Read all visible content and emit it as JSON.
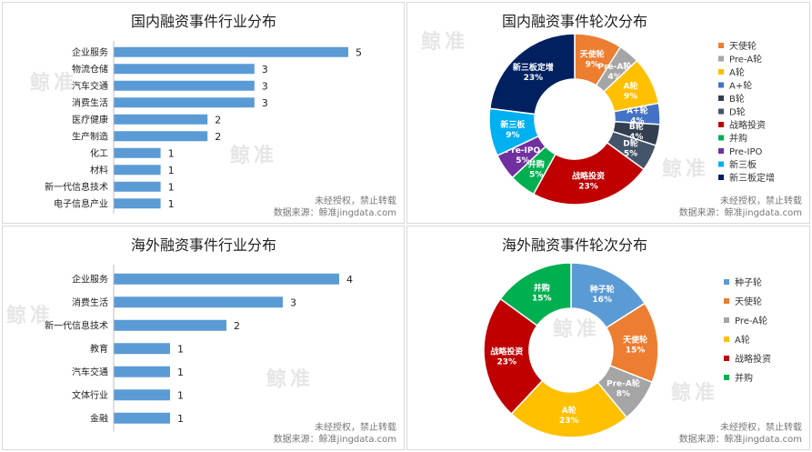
{
  "watermark": "鲸准",
  "footer": {
    "line1": "未经授权，禁止转载",
    "line2": "数据来源：鲸准jingdata.com"
  },
  "chart_data": [
    {
      "id": "domestic-industry",
      "type": "bar",
      "orientation": "horizontal",
      "title": "国内融资事件行业分布",
      "categories": [
        "企业服务",
        "物流仓储",
        "汽车交通",
        "消费生活",
        "医疗健康",
        "生产制造",
        "化工",
        "材料",
        "新一代信息技术",
        "电子信息产业"
      ],
      "values": [
        5,
        3,
        3,
        3,
        2,
        2,
        1,
        1,
        1,
        1
      ],
      "color": "#5b9bd5",
      "xlim": [
        0,
        5
      ]
    },
    {
      "id": "domestic-round",
      "type": "pie",
      "donut": true,
      "title": "国内融资事件轮次分布",
      "slices": [
        {
          "label": "天使轮",
          "value": 9,
          "color": "#ed7d31"
        },
        {
          "label": "Pre-A轮",
          "value": 4,
          "color": "#a5a5a5"
        },
        {
          "label": "A轮",
          "value": 9,
          "color": "#ffc000"
        },
        {
          "label": "A+轮",
          "value": 4,
          "color": "#4472c4"
        },
        {
          "label": "B轮",
          "value": 4,
          "color": "#333f50"
        },
        {
          "label": "D轮",
          "value": 5,
          "color": "#44546a"
        },
        {
          "label": "战略投资",
          "value": 23,
          "color": "#c00000"
        },
        {
          "label": "并购",
          "value": 5,
          "color": "#00b050"
        },
        {
          "label": "Pre-IPO",
          "value": 5,
          "color": "#7030a0"
        },
        {
          "label": "新三板",
          "value": 9,
          "color": "#00b0f0"
        },
        {
          "label": "新三板定增",
          "value": 23,
          "color": "#002060"
        }
      ],
      "slice_text": [
        "天使轮\n9%",
        "Pre-A轮\n4%",
        "A轮\n9%",
        "A+轮\n4%",
        "B轮\n4%",
        "D轮\n5%",
        "战略投资\n23%",
        "并购\n5%",
        "Pre-IPO\n5%",
        "新三板\n9%",
        "新三板定增\n23%"
      ],
      "legend": [
        "天使轮",
        "Pre-A轮",
        "A轮",
        "A+轮",
        "B轮",
        "D轮",
        "战略投资",
        "并购",
        "Pre-IPO",
        "新三板",
        "新三板定增"
      ],
      "legend_position": "right"
    },
    {
      "id": "overseas-industry",
      "type": "bar",
      "orientation": "horizontal",
      "title": "海外融资事件行业分布",
      "categories": [
        "企业服务",
        "消费生活",
        "新一代信息技术",
        "教育",
        "汽车交通",
        "文体行业",
        "金融"
      ],
      "values": [
        4,
        3,
        2,
        1,
        1,
        1,
        1
      ],
      "color": "#5b9bd5",
      "xlim": [
        0,
        4
      ]
    },
    {
      "id": "overseas-round",
      "type": "pie",
      "donut": true,
      "title": "海外融资事件轮次分布",
      "slices": [
        {
          "label": "种子轮",
          "value": 16,
          "color": "#5b9bd5"
        },
        {
          "label": "天使轮",
          "value": 15,
          "color": "#ed7d31"
        },
        {
          "label": "Pre-A轮",
          "value": 8,
          "color": "#a5a5a5"
        },
        {
          "label": "A轮",
          "value": 23,
          "color": "#ffc000"
        },
        {
          "label": "战略投资",
          "value": 23,
          "color": "#c00000"
        },
        {
          "label": "并购",
          "value": 15,
          "color": "#00b050"
        }
      ],
      "slice_text": [
        "种子轮\n16%",
        "天使轮\n15%",
        "Pre-A轮\n8%",
        "A轮\n23%",
        "战略投资\n23%",
        "并购\n15%"
      ],
      "legend": [
        "种子轮",
        "天使轮",
        "Pre-A轮",
        "A轮",
        "战略投资",
        "并购"
      ],
      "legend_position": "right"
    }
  ]
}
